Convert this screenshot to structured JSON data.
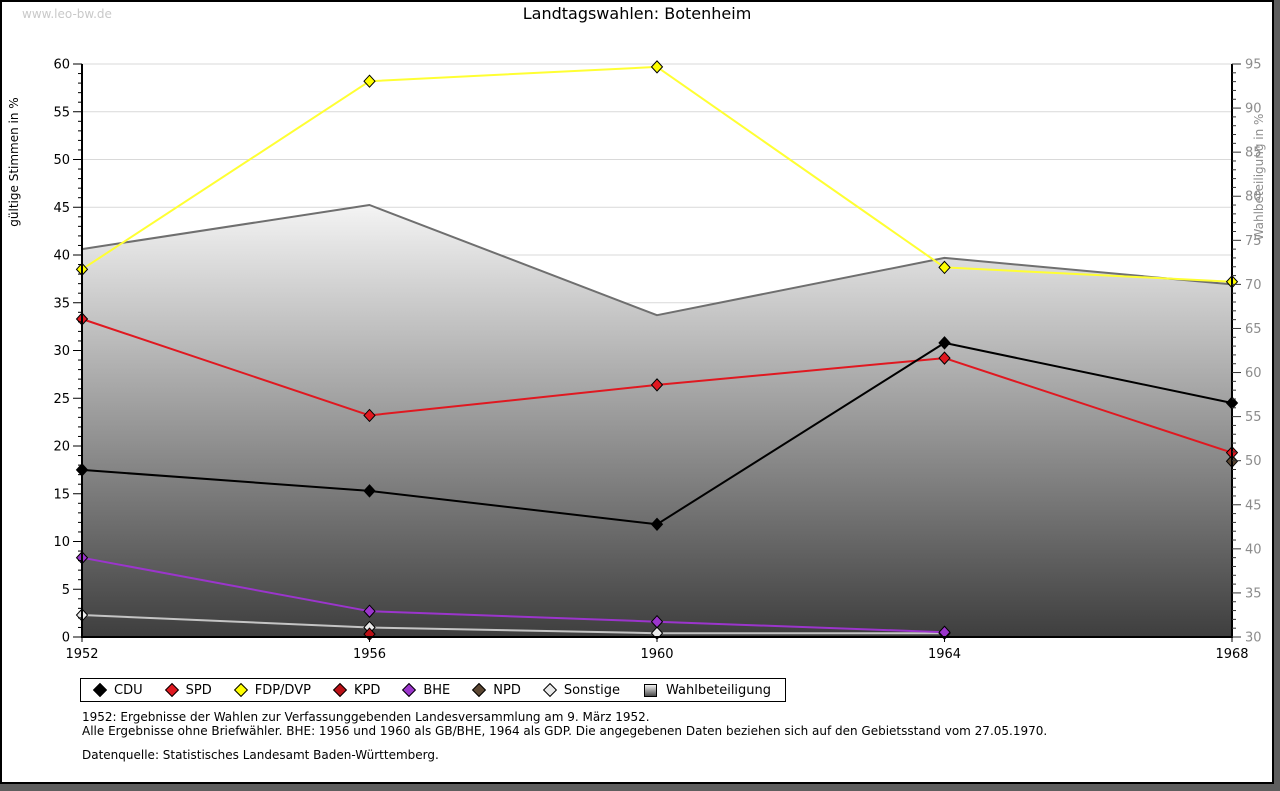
{
  "page": {
    "watermark": "www.leo-bw.de",
    "title": "Landtagswahlen: Botenheim",
    "outside_background": "#5e5e5e",
    "figure_background": "#ffffff"
  },
  "footnotes": {
    "line1": "1952: Ergebnisse der Wahlen zur Verfassunggebenden Landesversammlung am 9. März 1952.",
    "line2": "Alle Ergebnisse ohne Briefwähler. BHE: 1956 und 1960 als GB/BHE, 1964 als GDP. Die angegebenen Daten beziehen sich auf den Gebietsstand vom 27.05.1970.",
    "source": "Datenquelle: Statistisches Landesamt Baden-Württemberg."
  },
  "chart_data": {
    "type": "line",
    "title": "Landtagswahlen: Botenheim",
    "x": [
      1952,
      1956,
      1960,
      1964,
      1968
    ],
    "grid": true,
    "gridline_color": "#d9d9d9",
    "legend_position": "bottom",
    "left_axis": {
      "label": "gültige Stimmen in %",
      "min": 0,
      "max": 60,
      "ticks": [
        0,
        5,
        10,
        15,
        20,
        25,
        30,
        35,
        40,
        45,
        50,
        55,
        60
      ],
      "minor_step": 1,
      "text_color": "#000000"
    },
    "right_axis": {
      "label": "Wahlbeteiligung in %",
      "min": 30,
      "max": 95,
      "ticks": [
        30,
        35,
        40,
        45,
        50,
        55,
        60,
        65,
        70,
        75,
        80,
        85,
        90,
        95
      ],
      "minor_step": 1,
      "text_color": "#8c8c8c"
    },
    "series": [
      {
        "name": "CDU",
        "axis": "left",
        "color": "#000000",
        "marker": "diamond",
        "points": [
          [
            1952,
            17.5
          ],
          [
            1956,
            15.3
          ],
          [
            1960,
            11.8
          ],
          [
            1964,
            30.8
          ],
          [
            1968,
            24.5
          ]
        ]
      },
      {
        "name": "SPD",
        "axis": "left",
        "color": "#e01820",
        "marker": "diamond",
        "points": [
          [
            1952,
            33.3
          ],
          [
            1956,
            23.2
          ],
          [
            1960,
            26.4
          ],
          [
            1964,
            29.2
          ],
          [
            1968,
            19.3
          ]
        ]
      },
      {
        "name": "FDP/DVP",
        "axis": "left",
        "color": "#ffff33",
        "marker": "diamond",
        "marker_color": "#ffff00",
        "points": [
          [
            1952,
            38.5
          ],
          [
            1956,
            58.2
          ],
          [
            1960,
            59.7
          ],
          [
            1964,
            38.7
          ],
          [
            1968,
            37.2
          ]
        ]
      },
      {
        "name": "KPD",
        "axis": "left",
        "color": "#bb1016",
        "marker": "diamond",
        "points": [
          [
            1956,
            0.3
          ]
        ]
      },
      {
        "name": "BHE",
        "axis": "left",
        "color": "#9b35cc",
        "marker": "diamond",
        "points": [
          [
            1952,
            8.3
          ],
          [
            1956,
            2.7
          ],
          [
            1960,
            1.6
          ],
          [
            1964,
            0.5
          ]
        ]
      },
      {
        "name": "NPD",
        "axis": "left",
        "color": "#5b4632",
        "marker": "diamond",
        "points": [
          [
            1968,
            18.4
          ]
        ]
      },
      {
        "name": "Sonstige",
        "axis": "left",
        "color": "#c4c4c4",
        "marker": "diamond",
        "marker_color": "#e9e9e9",
        "points": [
          [
            1952,
            2.3
          ],
          [
            1956,
            1.0
          ],
          [
            1960,
            0.4
          ],
          [
            1964,
            0.4
          ]
        ]
      },
      {
        "name": "Wahlbeteiligung",
        "axis": "right",
        "color": "#6f6f6f",
        "marker": "none",
        "area": true,
        "fill_gradient": [
          "#f4f4f4",
          "#3e3e3e"
        ],
        "points": [
          [
            1952,
            74
          ],
          [
            1956,
            79
          ],
          [
            1960,
            66.5
          ],
          [
            1964,
            73
          ],
          [
            1968,
            70
          ]
        ]
      }
    ],
    "draw_order": [
      "Sonstige",
      "BHE",
      "KPD",
      "NPD",
      "FDP/DVP",
      "SPD",
      "CDU"
    ]
  }
}
